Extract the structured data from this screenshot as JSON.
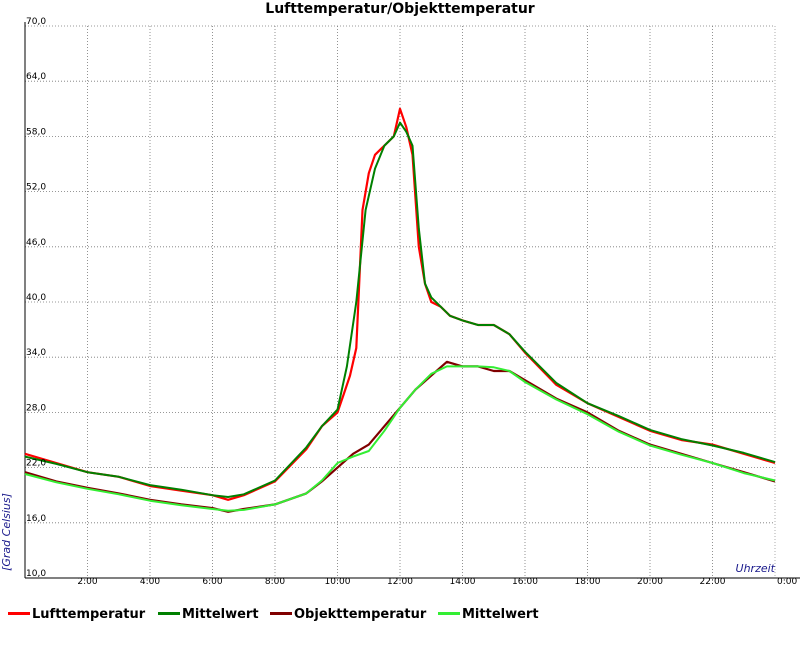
{
  "chart_data": {
    "type": "line",
    "title": "Lufttemperatur/Objekttemperatur",
    "xlabel": "Uhrzeit",
    "ylabel": "[Grad Celsius]",
    "xlim": [
      0,
      24
    ],
    "ylim": [
      10,
      70
    ],
    "y_ticks": [
      "10,0",
      "16,0",
      "22,0",
      "28,0",
      "34,0",
      "40,0",
      "46,0",
      "52,0",
      "58,0",
      "64,0",
      "70,0"
    ],
    "x_tick_labels": [
      "2:00",
      "4:00",
      "6:00",
      "8:00",
      "10:00",
      "12:00",
      "14:00",
      "16:00",
      "18:00",
      "20:00",
      "22:00",
      "0:00"
    ],
    "x_tick_values": [
      2,
      4,
      6,
      8,
      10,
      12,
      14,
      16,
      18,
      20,
      22,
      24
    ],
    "grid": true,
    "legend_position": "bottom",
    "series": [
      {
        "name": "Lufttemperatur",
        "color": "#ff0000",
        "x": [
          0,
          1,
          2,
          3,
          4,
          5,
          6,
          6.5,
          7,
          8,
          9,
          9.5,
          10,
          10.2,
          10.4,
          10.6,
          10.8,
          11,
          11.2,
          11.5,
          11.8,
          12,
          12.2,
          12.4,
          12.6,
          12.8,
          13,
          13.3,
          13.6,
          14,
          14.5,
          15,
          15.5,
          16,
          17,
          18,
          19,
          20,
          21,
          22,
          23,
          24
        ],
        "values": [
          23.5,
          22.5,
          21.5,
          21,
          20,
          19.5,
          19,
          18.5,
          19,
          20.5,
          24,
          26.5,
          28,
          30,
          32,
          35,
          50,
          54,
          56,
          57,
          58,
          61,
          59,
          56,
          46,
          42,
          40,
          39.5,
          38.5,
          38,
          37.5,
          37.5,
          36.5,
          34.5,
          31,
          29,
          27.5,
          26,
          25,
          24.5,
          23.5,
          22.5
        ]
      },
      {
        "name": "Mittelwert",
        "color": "#008000",
        "x": [
          0,
          1,
          2,
          3,
          4,
          5,
          6,
          6.5,
          7,
          8,
          9,
          9.5,
          10,
          10.3,
          10.6,
          10.9,
          11.2,
          11.5,
          11.8,
          12,
          12.2,
          12.4,
          12.6,
          12.8,
          13,
          13.3,
          13.6,
          14,
          14.5,
          15,
          15.5,
          16,
          17,
          18,
          19,
          20,
          21,
          22,
          23,
          24
        ],
        "values": [
          23.2,
          22.4,
          21.5,
          21,
          20.1,
          19.6,
          19,
          18.8,
          19.1,
          20.6,
          24.2,
          26.5,
          28.3,
          33,
          40,
          50,
          54.5,
          57,
          58,
          59.5,
          58.5,
          57,
          48,
          42,
          40.5,
          39.5,
          38.5,
          38,
          37.5,
          37.5,
          36.5,
          34.6,
          31.2,
          29,
          27.6,
          26.1,
          25.1,
          24.4,
          23.6,
          22.6
        ]
      },
      {
        "name": "Objekttemperatur",
        "color": "#800000",
        "x": [
          0,
          1,
          2,
          3,
          4,
          5,
          6,
          6.5,
          7,
          8,
          9,
          9.5,
          10,
          10.5,
          11,
          11.5,
          12,
          12.5,
          13,
          13.5,
          14,
          14.5,
          15,
          15.5,
          16,
          17,
          18,
          19,
          20,
          21,
          22,
          23,
          24
        ],
        "values": [
          21.5,
          20.5,
          19.8,
          19.2,
          18.5,
          18,
          17.6,
          17.2,
          17.5,
          18,
          19.2,
          20.5,
          22,
          23.5,
          24.5,
          26.5,
          28.5,
          30.5,
          32,
          33.5,
          33,
          33,
          32.5,
          32.5,
          31.5,
          29.5,
          28,
          26,
          24.5,
          23.5,
          22.5,
          21.5,
          20.5
        ]
      },
      {
        "name": "Mittelwert",
        "color": "#33ee33",
        "x": [
          0,
          1,
          2,
          3,
          4,
          5,
          6,
          6.5,
          7,
          8,
          9,
          9.5,
          10,
          10.5,
          11,
          11.5,
          12,
          12.5,
          13,
          13.5,
          14,
          14.5,
          15,
          15.5,
          16,
          17,
          18,
          19,
          20,
          21,
          22,
          23,
          24
        ],
        "values": [
          21.3,
          20.4,
          19.7,
          19.1,
          18.4,
          17.9,
          17.5,
          17.3,
          17.4,
          18,
          19.2,
          20.6,
          22.5,
          23.2,
          23.8,
          26,
          28.5,
          30.5,
          32.2,
          33,
          33,
          33,
          32.9,
          32.5,
          31.3,
          29.4,
          27.8,
          25.9,
          24.4,
          23.4,
          22.5,
          21.4,
          20.6
        ]
      }
    ]
  }
}
